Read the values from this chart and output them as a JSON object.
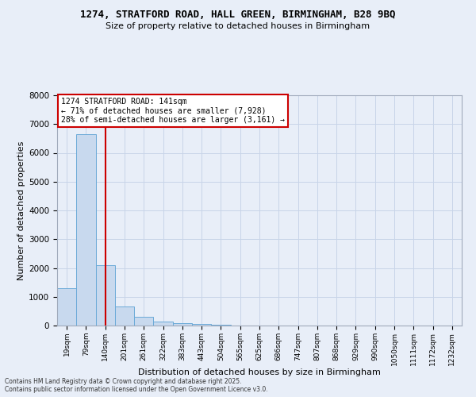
{
  "title_line1": "1274, STRATFORD ROAD, HALL GREEN, BIRMINGHAM, B28 9BQ",
  "title_line2": "Size of property relative to detached houses in Birmingham",
  "xlabel": "Distribution of detached houses by size in Birmingham",
  "ylabel": "Number of detached properties",
  "categories": [
    "19sqm",
    "79sqm",
    "140sqm",
    "201sqm",
    "261sqm",
    "322sqm",
    "383sqm",
    "443sqm",
    "504sqm",
    "565sqm",
    "625sqm",
    "686sqm",
    "747sqm",
    "807sqm",
    "868sqm",
    "929sqm",
    "990sqm",
    "1050sqm",
    "1111sqm",
    "1172sqm",
    "1232sqm"
  ],
  "values": [
    1300,
    6650,
    2100,
    650,
    310,
    130,
    75,
    50,
    30,
    0,
    0,
    0,
    0,
    0,
    0,
    0,
    0,
    0,
    0,
    0,
    0
  ],
  "bar_color": "#c8d9ee",
  "bar_edge_color": "#6baad8",
  "red_line_index": 2,
  "annotation_text": "1274 STRATFORD ROAD: 141sqm\n← 71% of detached houses are smaller (7,928)\n28% of semi-detached houses are larger (3,161) →",
  "annotation_box_color": "#ffffff",
  "annotation_border_color": "#cc0000",
  "ylim": [
    0,
    8000
  ],
  "yticks": [
    0,
    1000,
    2000,
    3000,
    4000,
    5000,
    6000,
    7000,
    8000
  ],
  "grid_color": "#c8d4e8",
  "background_color": "#e8eef8",
  "footer_line1": "Contains HM Land Registry data © Crown copyright and database right 2025.",
  "footer_line2": "Contains public sector information licensed under the Open Government Licence v3.0."
}
